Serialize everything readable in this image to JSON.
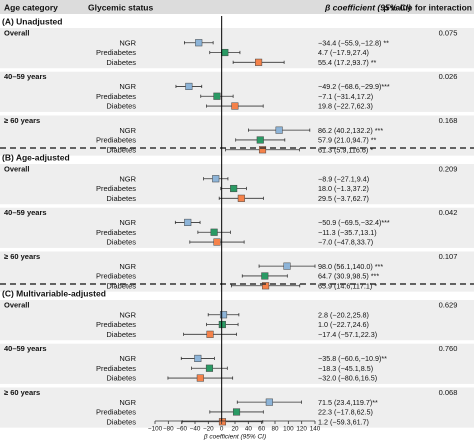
{
  "header": {
    "age_category": "Age category",
    "glycemic_status": "Glycemic status",
    "coef": "β coefficient (95% CI)",
    "pval": "p value for interaction"
  },
  "colors": {
    "NGR": "#8db4d8",
    "Prediabetes": "#2a9a64",
    "Diabetes": "#f5824a",
    "stripe": "#eeeeee",
    "zero_line": "#000000"
  },
  "chart_data": {
    "type": "forest",
    "xlabel": "β coefficient (95% CI)",
    "xlim": [
      -100,
      140
    ],
    "xticks": [
      -100,
      -80,
      -60,
      -40,
      -20,
      0,
      20,
      40,
      60,
      80,
      100,
      120,
      140
    ],
    "panels": [
      {
        "title": "(A) Unadjusted",
        "groups": [
          {
            "label": "Overall",
            "p": "0.075",
            "rows": [
              {
                "status": "NGR",
                "est": -34.4,
                "lo": -55.9,
                "hi": -12.8,
                "text": "−34.4 (−55.9,−12.8) **"
              },
              {
                "status": "Prediabetes",
                "est": 4.7,
                "lo": -17.9,
                "hi": 27.4,
                "text": "4.7 (−17.9,27.4)"
              },
              {
                "status": "Diabetes",
                "est": 55.4,
                "lo": 17.2,
                "hi": 93.7,
                "text": "55.4 (17.2,93.7) **"
              }
            ]
          },
          {
            "label": "40–59 years",
            "p": "0.026",
            "rows": [
              {
                "status": "NGR",
                "est": -49.2,
                "lo": -68.6,
                "hi": -29.9,
                "text": "−49.2 (−68.6,−29.9)***"
              },
              {
                "status": "Prediabetes",
                "est": -7.1,
                "lo": -31.4,
                "hi": 17.2,
                "text": "−7.1 (−31.4,17.2)"
              },
              {
                "status": "Diabetes",
                "est": 19.8,
                "lo": -22.7,
                "hi": 62.3,
                "text": "19.8 (−22.7,62.3)"
              }
            ]
          },
          {
            "label": "≥ 60 years",
            "p": "0.168",
            "rows": [
              {
                "status": "NGR",
                "est": 86.2,
                "lo": 40.2,
                "hi": 132.2,
                "text": "86.2 (40.2,132.2) ***"
              },
              {
                "status": "Prediabetes",
                "est": 57.9,
                "lo": 21.0,
                "hi": 94.7,
                "text": "57.9 (21.0,94.7) **"
              },
              {
                "status": "Diabetes",
                "est": 61.3,
                "lo": 5.9,
                "hi": 116.6,
                "text": "61.3 (5.9,116.6) *"
              }
            ]
          }
        ]
      },
      {
        "title": "(B) Age-adjusted",
        "groups": [
          {
            "label": "Overall",
            "p": "0.209",
            "rows": [
              {
                "status": "NGR",
                "est": -8.9,
                "lo": -27.1,
                "hi": 9.4,
                "text": "−8.9 (−27.1,9.4)"
              },
              {
                "status": "Prediabetes",
                "est": 18.0,
                "lo": -1.3,
                "hi": 37.2,
                "text": "18.0 (−1.3,37.2)"
              },
              {
                "status": "Diabetes",
                "est": 29.5,
                "lo": -3.7,
                "hi": 62.7,
                "text": "29.5 (−3.7,62.7)"
              }
            ]
          },
          {
            "label": "40–59 years",
            "p": "0.042",
            "rows": [
              {
                "status": "NGR",
                "est": -50.9,
                "lo": -69.5,
                "hi": -32.4,
                "text": "−50.9 (−69.5,−32.4)***"
              },
              {
                "status": "Prediabetes",
                "est": -11.3,
                "lo": -35.7,
                "hi": 13.1,
                "text": "−11.3 (−35.7,13.1)"
              },
              {
                "status": "Diabetes",
                "est": -7.0,
                "lo": -47.8,
                "hi": 33.7,
                "text": "−7.0 (−47.8,33.7)"
              }
            ]
          },
          {
            "label": "≥ 60 years",
            "p": "0.107",
            "rows": [
              {
                "status": "NGR",
                "est": 98.0,
                "lo": 56.1,
                "hi": 140.0,
                "text": "98.0 (56.1,140.0) ***"
              },
              {
                "status": "Prediabetes",
                "est": 64.7,
                "lo": 30.9,
                "hi": 98.5,
                "text": "64.7 (30.9,98.5) ***"
              },
              {
                "status": "Diabetes",
                "est": 65.9,
                "lo": 14.6,
                "hi": 117.1,
                "text": "65.9 (14.6,117.1) *"
              }
            ]
          }
        ]
      },
      {
        "title": "(C) Multivariable-adjusted",
        "groups": [
          {
            "label": "Overall",
            "p": "0.629",
            "rows": [
              {
                "status": "NGR",
                "est": 2.8,
                "lo": -20.2,
                "hi": 25.8,
                "text": "2.8 (−20.2,25.8)"
              },
              {
                "status": "Prediabetes",
                "est": 1.0,
                "lo": -22.7,
                "hi": 24.6,
                "text": "1.0 (−22.7,24.6)"
              },
              {
                "status": "Diabetes",
                "est": -17.4,
                "lo": -57.1,
                "hi": 22.3,
                "text": "−17.4 (−57.1,22.3)"
              }
            ]
          },
          {
            "label": "40–59 years",
            "p": "0.760",
            "rows": [
              {
                "status": "NGR",
                "est": -35.8,
                "lo": -60.6,
                "hi": -10.9,
                "text": "−35.8 (−60.6,−10.9)**"
              },
              {
                "status": "Prediabetes",
                "est": -18.3,
                "lo": -45.1,
                "hi": 8.5,
                "text": "−18.3 (−45.1,8.5)"
              },
              {
                "status": "Diabetes",
                "est": -32.0,
                "lo": -80.6,
                "hi": 16.5,
                "text": "−32.0 (−80.6,16.5)"
              }
            ]
          },
          {
            "label": "≥ 60 years",
            "p": "0.068",
            "rows": [
              {
                "status": "NGR",
                "est": 71.5,
                "lo": 23.4,
                "hi": 119.7,
                "text": "71.5 (23.4,119.7)**"
              },
              {
                "status": "Prediabetes",
                "est": 22.3,
                "lo": -17.8,
                "hi": 62.5,
                "text": "22.3 (−17.8,62.5)"
              },
              {
                "status": "Diabetes",
                "est": 1.2,
                "lo": -59.3,
                "hi": 61.7,
                "text": "1.2 (−59.3,61.7)"
              }
            ]
          }
        ]
      }
    ]
  }
}
